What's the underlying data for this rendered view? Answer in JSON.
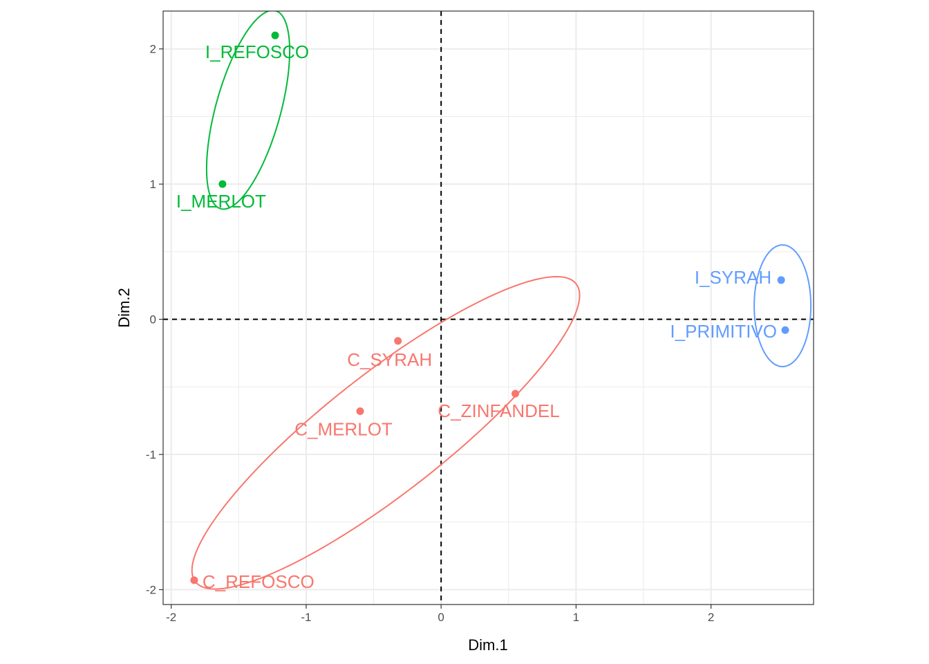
{
  "chart_data": {
    "type": "scatter",
    "title": "",
    "xlabel": "Dim.1",
    "ylabel": "Dim.2",
    "xlim": [
      -2.06,
      2.76
    ],
    "ylim": [
      -2.11,
      2.28
    ],
    "x_ticks": [
      -2,
      -1,
      0,
      1,
      2
    ],
    "y_ticks": [
      -2,
      -1,
      0,
      1,
      2
    ],
    "x_tick_labels": [
      "-2",
      "-1",
      "0",
      "1",
      "2"
    ],
    "y_tick_labels": [
      "-2",
      "-1",
      "0",
      "1",
      "2"
    ],
    "grid": true,
    "reference_lines": {
      "x": 0,
      "y": 0,
      "style": "dashed"
    },
    "legend": "none",
    "groups": [
      {
        "color": "#F8766D",
        "ellipse": {
          "center": [
            -0.41,
            -0.84
          ],
          "semi_axes": [
            1.79,
            0.44
          ],
          "angle_deg": 38
        },
        "points": [
          {
            "label": "C_SYRAH",
            "x": -0.32,
            "y": -0.16
          },
          {
            "label": "C_ZINFANDEL",
            "x": 0.55,
            "y": -0.55
          },
          {
            "label": "C_MERLOT",
            "x": -0.6,
            "y": -0.68
          },
          {
            "label": "C_REFOSCO",
            "x": -1.83,
            "y": -1.93
          }
        ]
      },
      {
        "color": "#00BA38",
        "ellipse": {
          "center": [
            -1.43,
            1.55
          ],
          "semi_axes": [
            0.76,
            0.24
          ],
          "angle_deg": 74.5
        },
        "points": [
          {
            "label": "I_REFOSCO",
            "x": -1.23,
            "y": 2.1
          },
          {
            "label": "I_MERLOT",
            "x": -1.62,
            "y": 1.0
          }
        ]
      },
      {
        "color": "#619CFF",
        "ellipse": {
          "center": [
            2.53,
            0.1
          ],
          "semi_axes": [
            0.45,
            0.21
          ],
          "angle_deg": 90
        },
        "points": [
          {
            "label": "I_SYRAH",
            "x": 2.52,
            "y": 0.29
          },
          {
            "label": "I_PRIMITIVO",
            "x": 2.55,
            "y": -0.08
          }
        ]
      }
    ]
  }
}
